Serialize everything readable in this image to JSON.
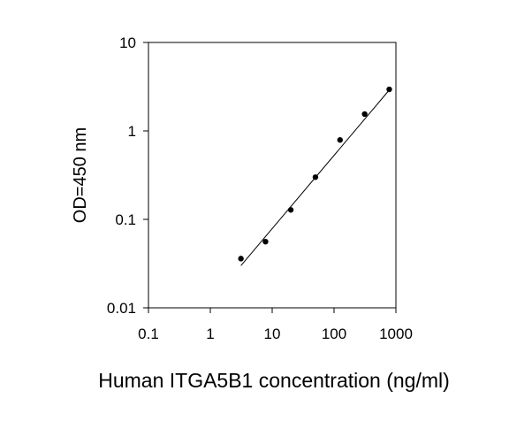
{
  "chart_data": {
    "type": "scatter",
    "xscale": "log",
    "yscale": "log",
    "xlim": [
      0.1,
      1000
    ],
    "ylim": [
      0.01,
      10
    ],
    "xlabel": "Human ITGA5B1 concentration (ng/ml)",
    "ylabel": "OD=450 nm",
    "x_ticks": [
      "0.1",
      "1",
      "10",
      "100",
      "1000"
    ],
    "y_ticks": [
      "0.01",
      "0.1",
      "1",
      "10"
    ],
    "grid": false,
    "series": [
      {
        "points": [
          {
            "x": 3.125,
            "y": 0.036
          },
          {
            "x": 7.8,
            "y": 0.056
          },
          {
            "x": 20,
            "y": 0.128
          },
          {
            "x": 50,
            "y": 0.3
          },
          {
            "x": 125,
            "y": 0.79
          },
          {
            "x": 312.5,
            "y": 1.55
          },
          {
            "x": 781,
            "y": 2.95
          }
        ],
        "fit_line": {
          "x": [
            3.125,
            781
          ],
          "y": [
            0.03,
            2.9
          ]
        }
      }
    ]
  }
}
